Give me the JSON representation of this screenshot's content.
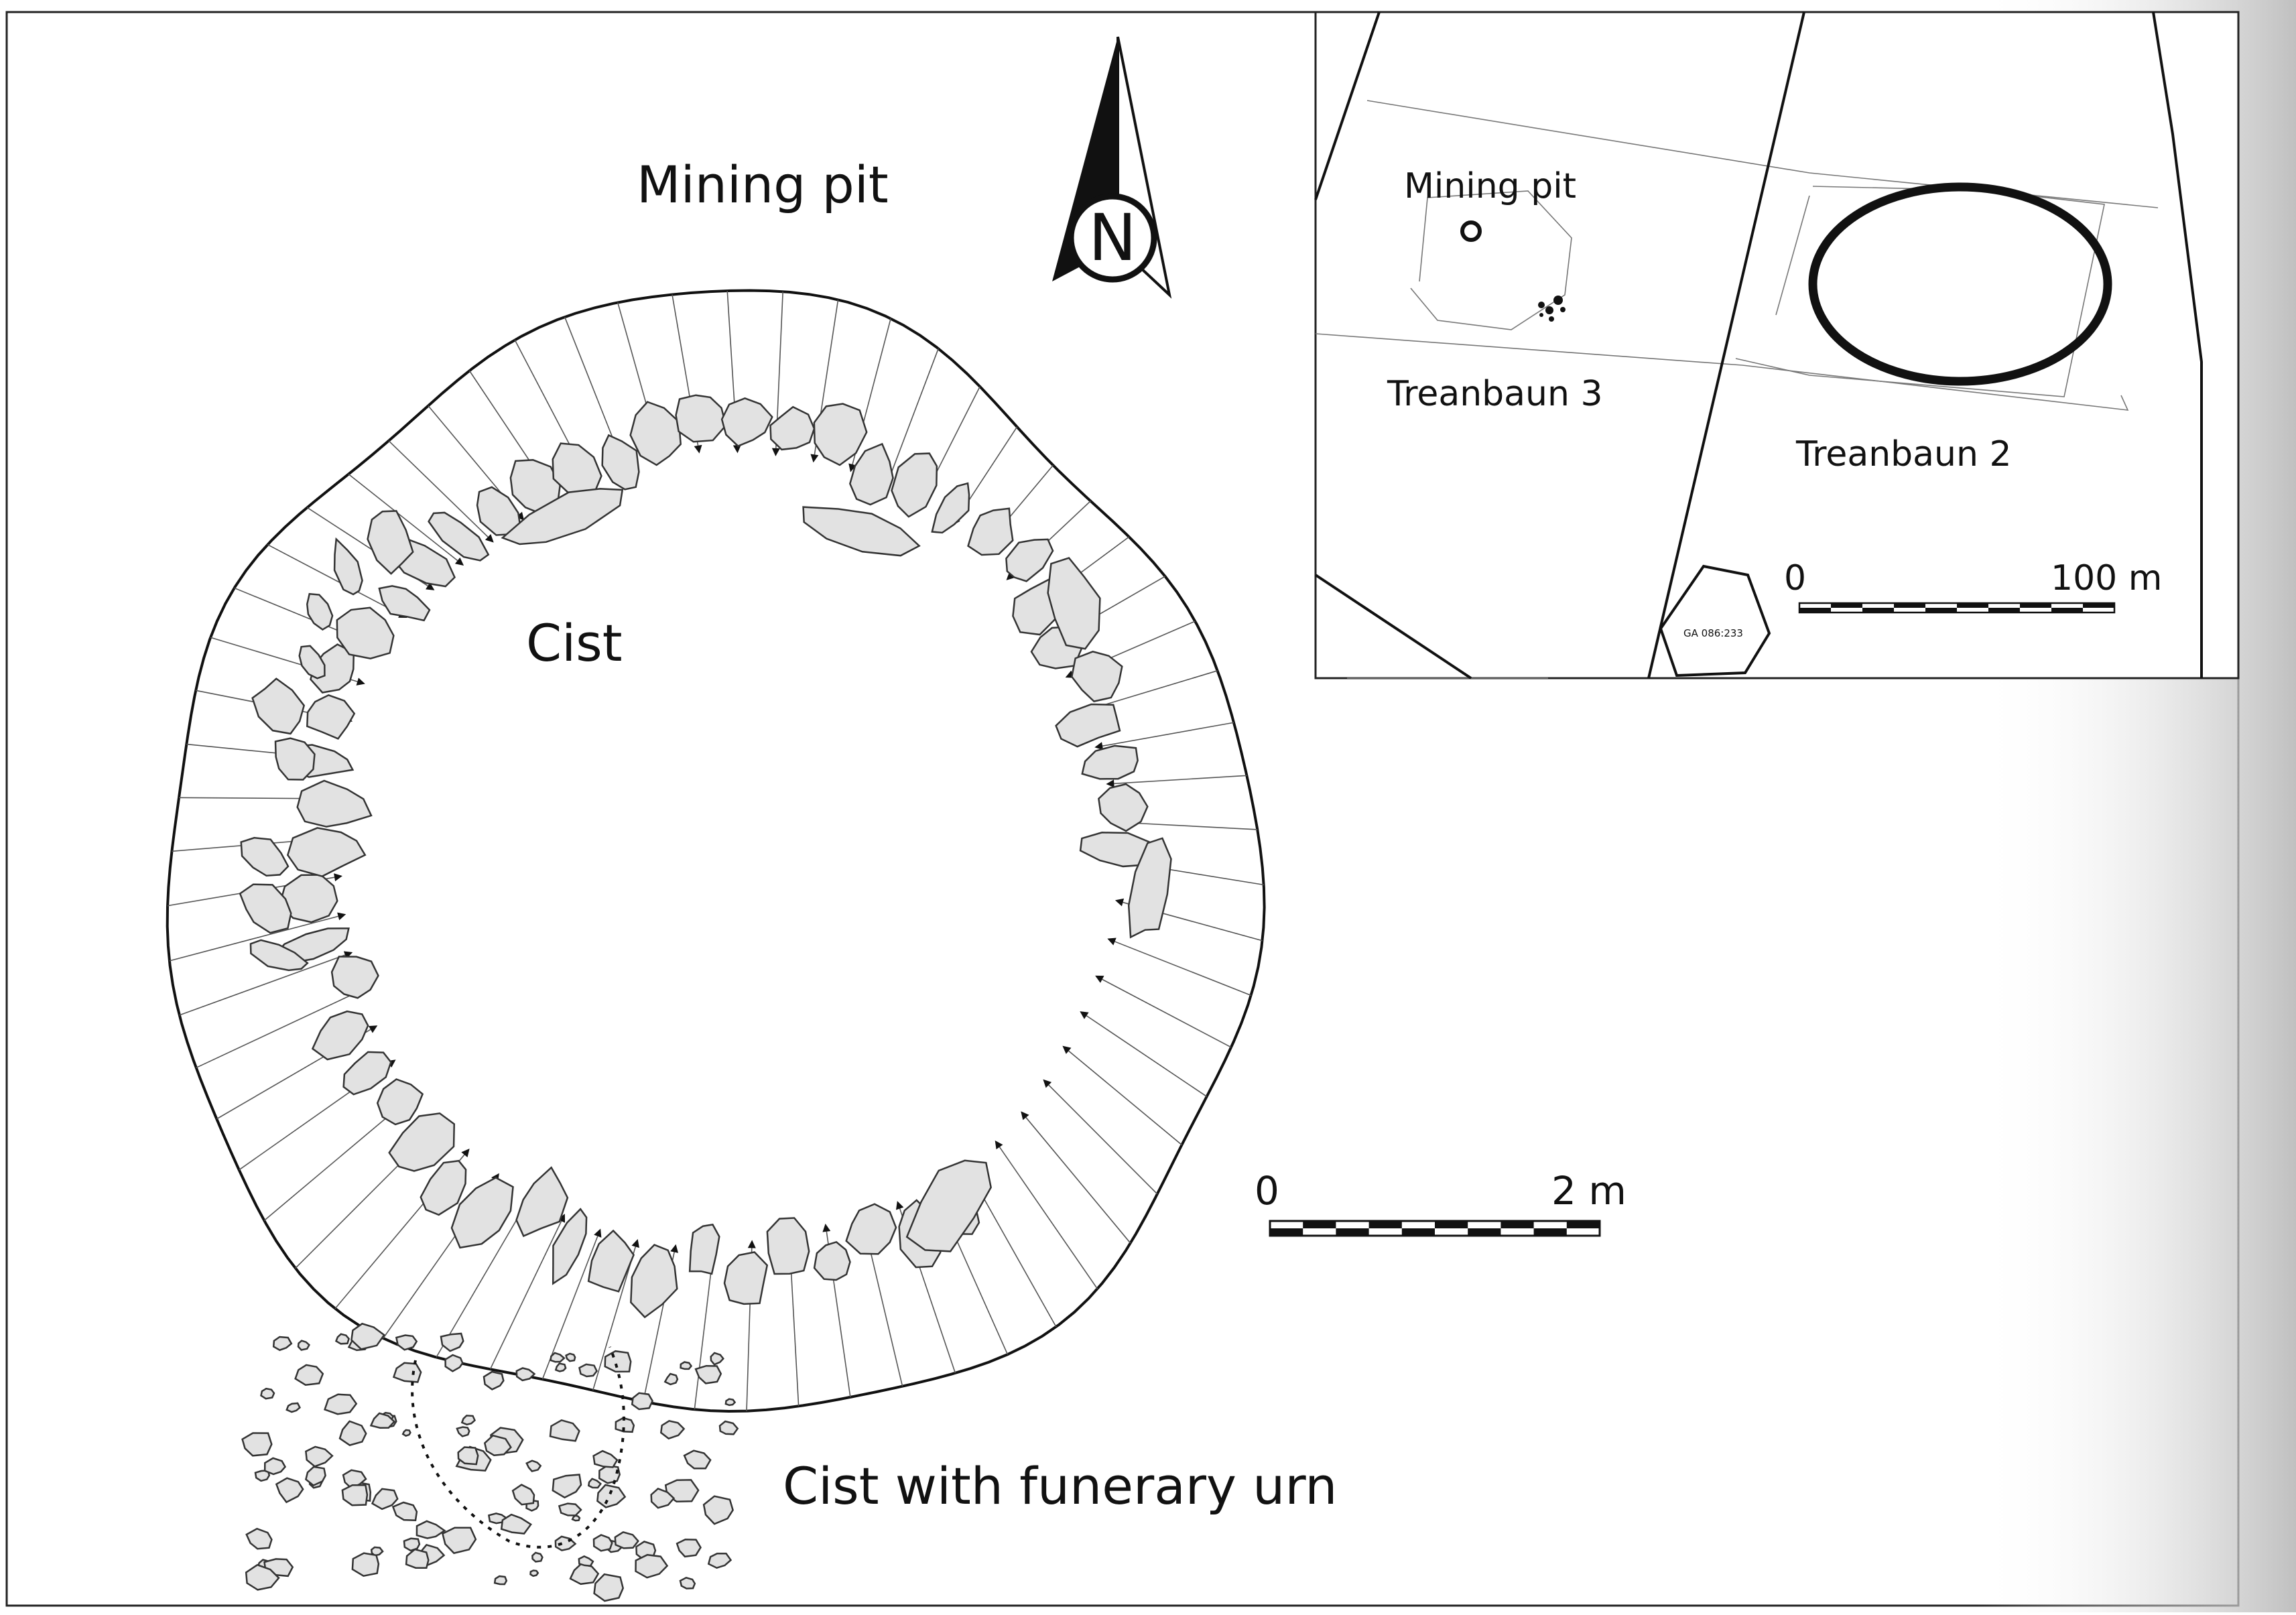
{
  "labels": {
    "mining_pit": "Mining pit",
    "cist": "Cist",
    "cist_urn": "Cist with funerary urn",
    "north": "N"
  },
  "scale_main": {
    "zero": "0",
    "end": "2 m"
  },
  "inset": {
    "mining_pit": "Mining pit",
    "site_3": "Treanbaun 3",
    "site_2": "Treanbaun 2",
    "ref_code": "GA 086:233",
    "scale_zero": "0",
    "scale_end": "100 m"
  },
  "colors": {
    "stone_fill": "#e2e2e2",
    "line": "#111111",
    "page_edge_shadow": "#c8c8c8"
  },
  "icons": {
    "north_arrow": "north-arrow-icon"
  }
}
